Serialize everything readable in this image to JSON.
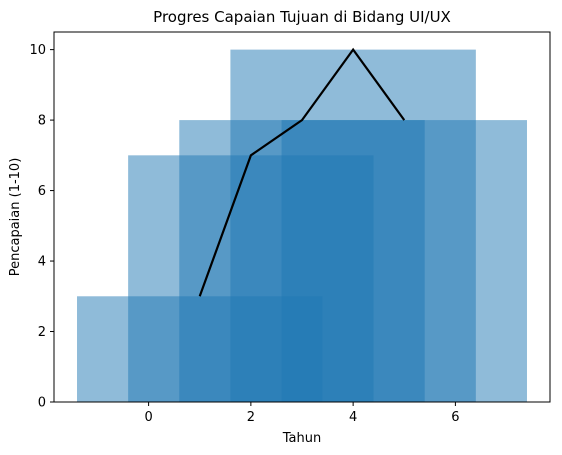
{
  "chart_data": {
    "type": "bar",
    "title": "Progres Capaian Tujuan di Bidang UI/UX",
    "xlabel": "Tahun",
    "ylabel": "Pencapaian (1-10)",
    "xlim": [
      -1.85,
      7.85
    ],
    "ylim": [
      0,
      10.5
    ],
    "xticks": [
      0,
      2,
      4,
      6
    ],
    "yticks": [
      0,
      2,
      4,
      6,
      8,
      10
    ],
    "grid": false,
    "legend": "none",
    "bar_color": "#1f77b4",
    "bar_opacity": 0.5,
    "line_color": "#000000",
    "bars": [
      {
        "x_center": 1,
        "width": 4.8,
        "value": 3
      },
      {
        "x_center": 2,
        "width": 4.8,
        "value": 7
      },
      {
        "x_center": 3,
        "width": 4.8,
        "value": 8
      },
      {
        "x_center": 4,
        "width": 4.8,
        "value": 10
      },
      {
        "x_center": 5,
        "width": 4.8,
        "value": 8
      }
    ],
    "line": {
      "x": [
        1,
        2,
        3,
        4,
        5
      ],
      "y": [
        3,
        7,
        8,
        10,
        8
      ]
    }
  }
}
